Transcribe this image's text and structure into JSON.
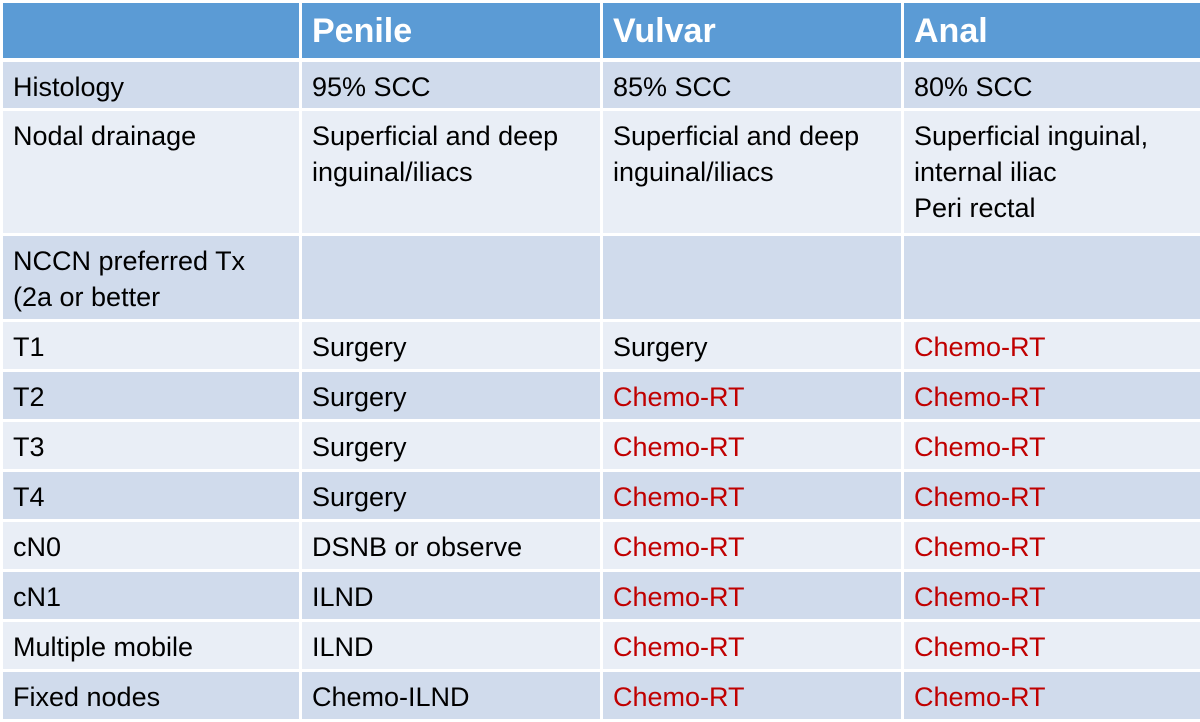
{
  "headers": [
    "",
    "Penile",
    "Vulvar",
    "Anal"
  ],
  "rows": [
    {
      "label": "Histology",
      "cells": [
        {
          "lines": [
            "95% SCC"
          ],
          "color": "black"
        },
        {
          "lines": [
            "85% SCC"
          ],
          "color": "black"
        },
        {
          "lines": [
            "80% SCC"
          ],
          "color": "black"
        }
      ]
    },
    {
      "label": "Nodal drainage",
      "cells": [
        {
          "lines": [
            "Superficial and deep",
            "inguinal/iliacs"
          ],
          "color": "black"
        },
        {
          "lines": [
            "Superficial and deep",
            "inguinal/iliacs"
          ],
          "color": "black"
        },
        {
          "lines": [
            "Superficial inguinal,",
            "internal iliac",
            "Peri rectal"
          ],
          "color": "black"
        }
      ]
    },
    {
      "label_lines": [
        "NCCN preferred Tx",
        "(2a or better"
      ],
      "cells": [
        {
          "lines": [],
          "color": "black"
        },
        {
          "lines": [],
          "color": "black"
        },
        {
          "lines": [],
          "color": "black"
        }
      ]
    },
    {
      "label": "T1",
      "cells": [
        {
          "lines": [
            "Surgery"
          ],
          "color": "black"
        },
        {
          "lines": [
            "Surgery"
          ],
          "color": "black"
        },
        {
          "lines": [
            "Chemo-RT"
          ],
          "color": "red"
        }
      ]
    },
    {
      "label": "T2",
      "cells": [
        {
          "lines": [
            "Surgery"
          ],
          "color": "black"
        },
        {
          "lines": [
            "Chemo-RT"
          ],
          "color": "red"
        },
        {
          "lines": [
            "Chemo-RT"
          ],
          "color": "red"
        }
      ]
    },
    {
      "label": "T3",
      "cells": [
        {
          "lines": [
            "Surgery"
          ],
          "color": "black"
        },
        {
          "lines": [
            "Chemo-RT"
          ],
          "color": "red"
        },
        {
          "lines": [
            "Chemo-RT"
          ],
          "color": "red"
        }
      ]
    },
    {
      "label": "T4",
      "cells": [
        {
          "lines": [
            "Surgery"
          ],
          "color": "black"
        },
        {
          "lines": [
            "Chemo-RT"
          ],
          "color": "red"
        },
        {
          "lines": [
            "Chemo-RT"
          ],
          "color": "red"
        }
      ]
    },
    {
      "label": "cN0",
      "cells": [
        {
          "lines": [
            "DSNB or observe"
          ],
          "color": "black"
        },
        {
          "lines": [
            "Chemo-RT"
          ],
          "color": "red"
        },
        {
          "lines": [
            "Chemo-RT"
          ],
          "color": "red"
        }
      ]
    },
    {
      "label": "cN1",
      "cells": [
        {
          "lines": [
            "ILND"
          ],
          "color": "black"
        },
        {
          "lines": [
            "Chemo-RT"
          ],
          "color": "red"
        },
        {
          "lines": [
            "Chemo-RT"
          ],
          "color": "red"
        }
      ]
    },
    {
      "label": "Multiple mobile",
      "cells": [
        {
          "lines": [
            "ILND"
          ],
          "color": "black"
        },
        {
          "lines": [
            "Chemo-RT"
          ],
          "color": "red"
        },
        {
          "lines": [
            "Chemo-RT"
          ],
          "color": "red"
        }
      ]
    },
    {
      "label": "Fixed nodes",
      "cells": [
        {
          "lines": [
            "Chemo-ILND"
          ],
          "color": "black"
        },
        {
          "lines": [
            "Chemo-RT"
          ],
          "color": "red"
        },
        {
          "lines": [
            "Chemo-RT"
          ],
          "color": "red"
        }
      ]
    }
  ],
  "colors": {
    "header_bg": "#5b9bd5",
    "row_odd": "#d0dbec",
    "row_even": "#e9eef6",
    "highlight_text": "#c00000"
  }
}
